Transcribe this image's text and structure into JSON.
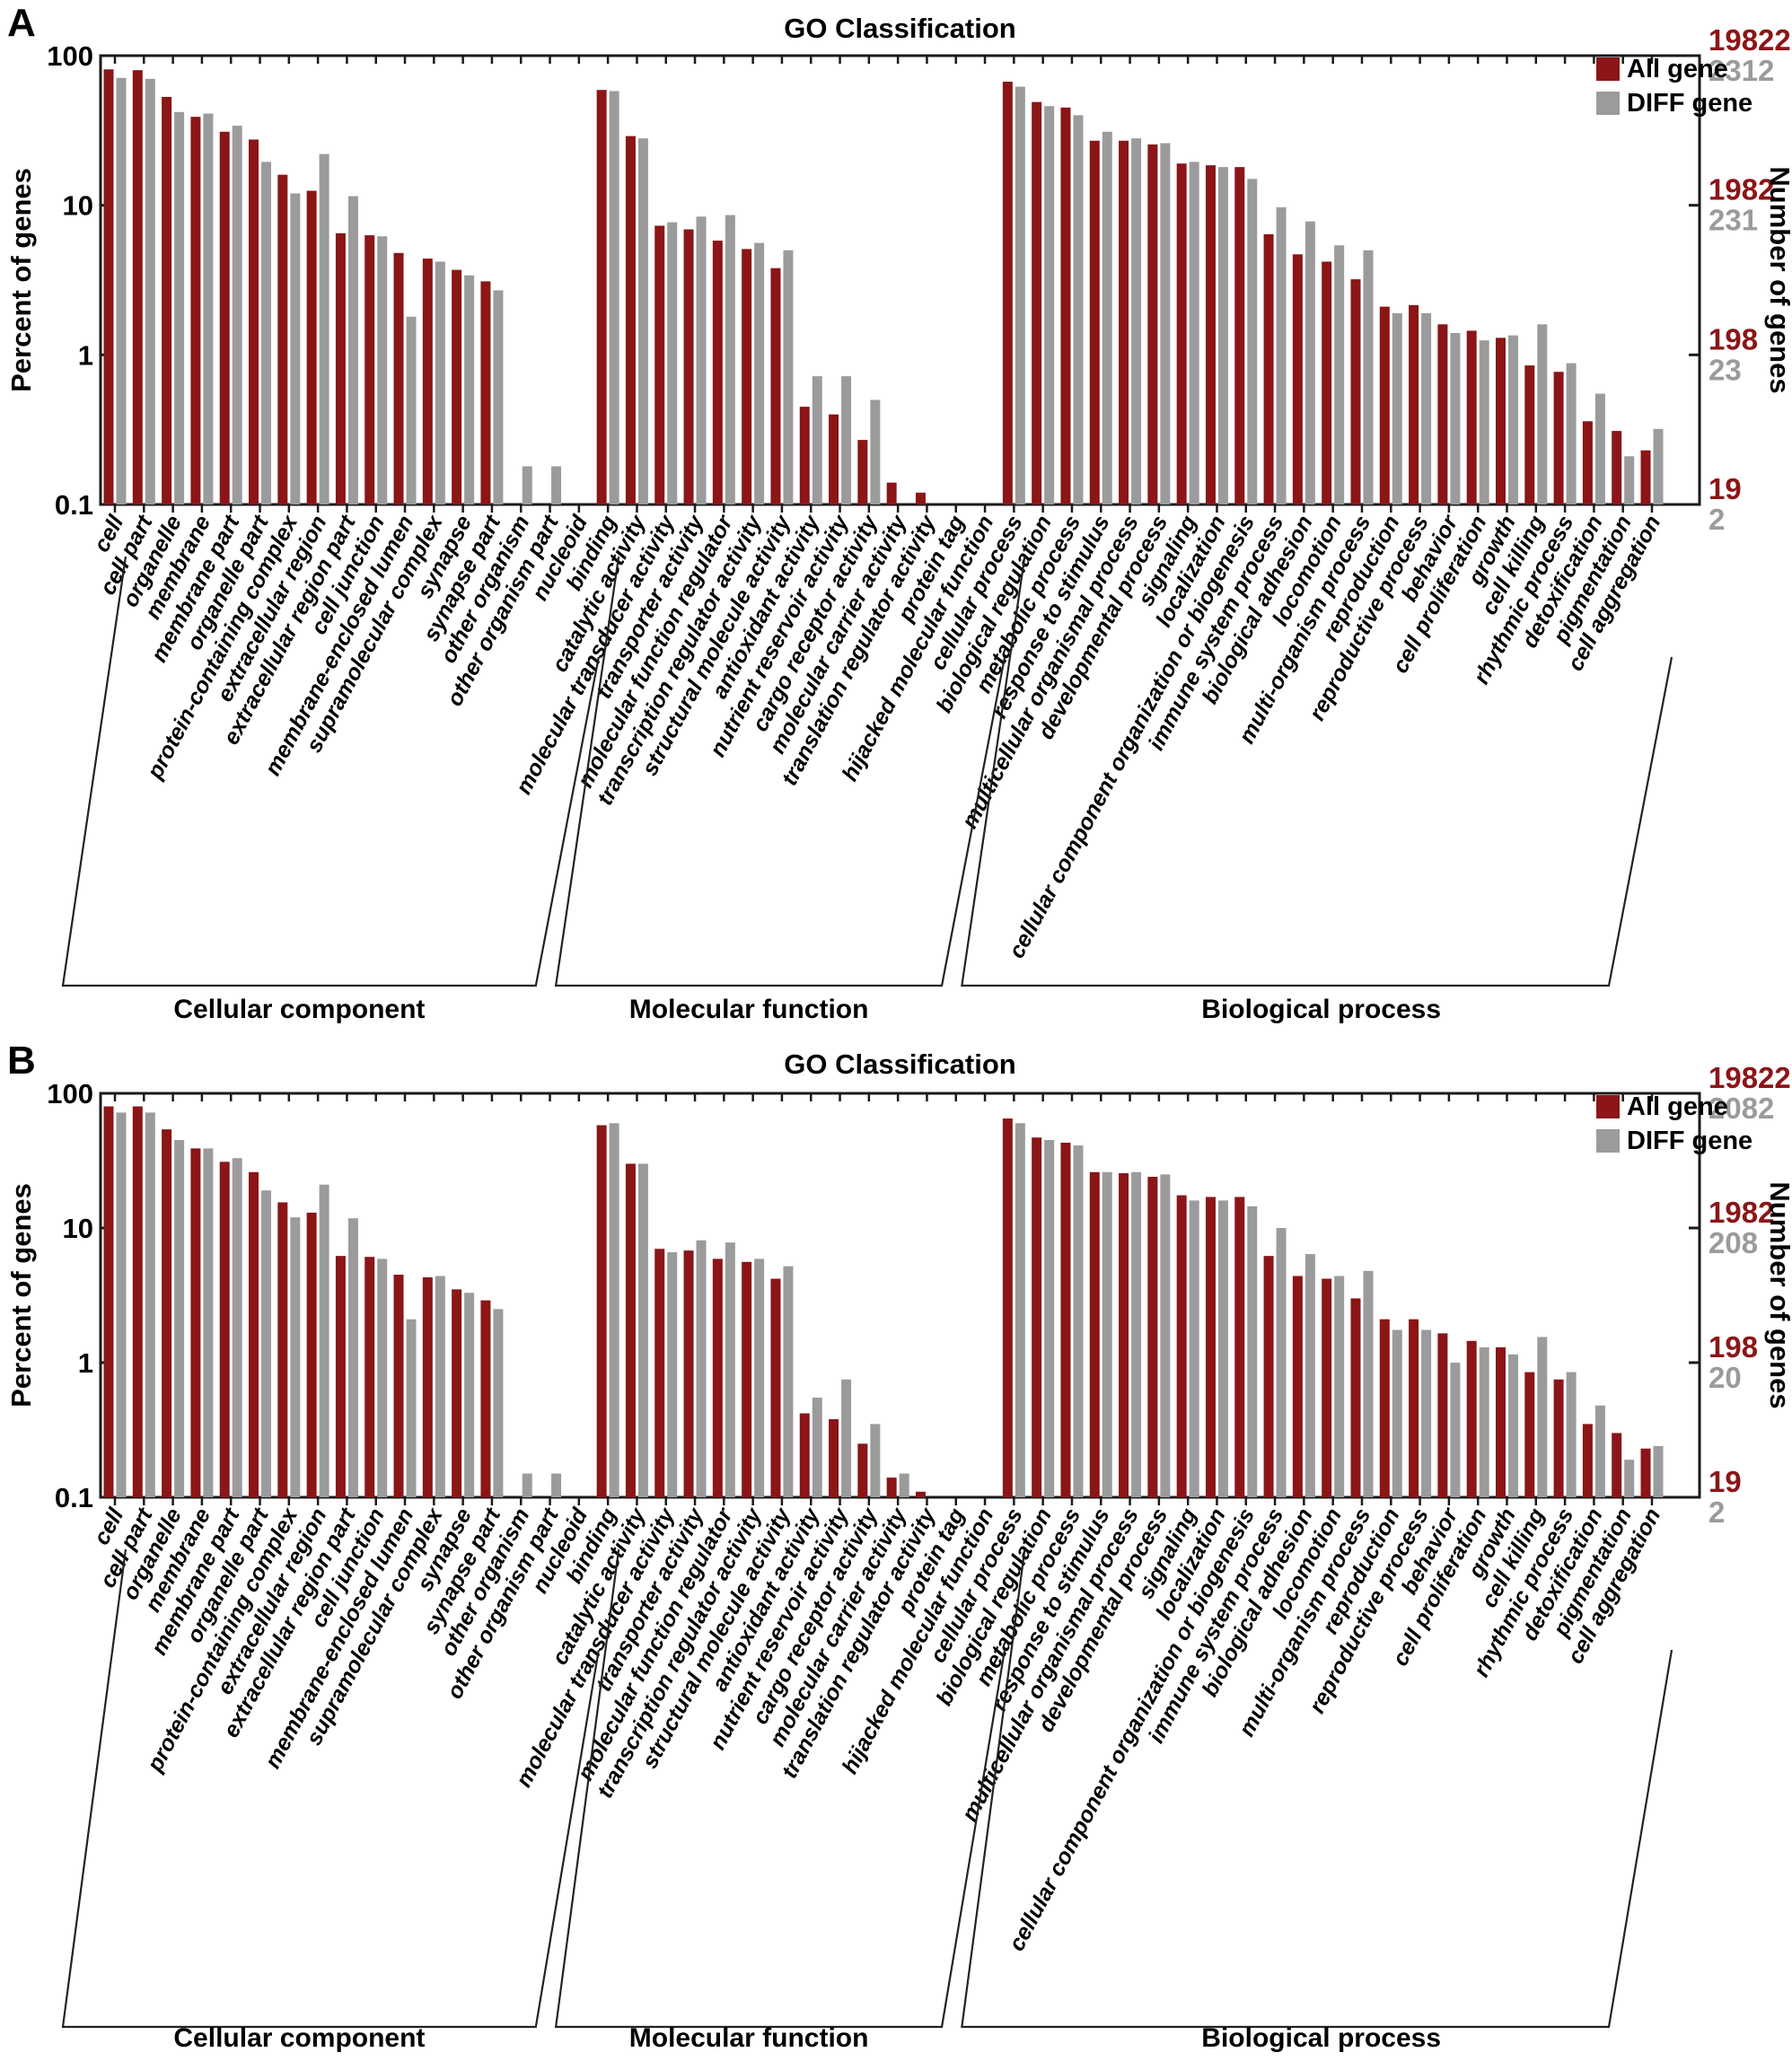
{
  "figure": {
    "title": "GO Classification",
    "ylabel_left": "Percent of genes",
    "ylabel_right": "Number of genes",
    "left_ticks": [
      "100",
      "10",
      "1",
      "0.1"
    ],
    "legend": [
      {
        "label": "All gene",
        "color": "#8b1517"
      },
      {
        "label": "DIFF gene",
        "color": "#9b9b9b"
      }
    ],
    "colors": {
      "all_gene": "#8b1517",
      "diff_gene": "#9b9b9b",
      "axis": "#1a1a1a",
      "text": "#000000"
    },
    "panels": [
      {
        "letter": "A",
        "right_axis_all": [
          "19822",
          "1982",
          "198",
          "19"
        ],
        "right_axis_diff": [
          "2312",
          "231",
          "23",
          "2"
        ]
      },
      {
        "letter": "B",
        "right_axis_all": [
          "19822",
          "1982",
          "198",
          "19"
        ],
        "right_axis_diff": [
          "2082",
          "208",
          "20",
          "2"
        ]
      }
    ],
    "group_captions": [
      "Cellular component",
      "Molecular function",
      "Biological process"
    ]
  },
  "chart_data": [
    {
      "type": "bar",
      "panel": "A",
      "title": "GO Classification",
      "ylabel": "Percent of genes",
      "y2label": "Number of genes",
      "yscale": "log",
      "ylim": [
        0.1,
        100
      ],
      "legend_position": "top-right-inside",
      "series_names": [
        "All gene",
        "DIFF gene"
      ],
      "groups": [
        {
          "name": "Cellular component",
          "categories": [
            "cell",
            "cell part",
            "organelle",
            "membrane",
            "membrane part",
            "organelle part",
            "protein-containing complex",
            "extracellular region",
            "extracellular region part",
            "cell junction",
            "membrane-enclosed lumen",
            "supramolecular complex",
            "synapse",
            "synapse part",
            "other organism",
            "other organism part",
            "nucleoid"
          ],
          "series": [
            {
              "name": "All gene",
              "values": [
                81,
                80,
                53,
                39,
                31,
                27.5,
                16,
                12.5,
                6.5,
                6.3,
                4.8,
                4.4,
                3.7,
                3.1,
                0,
                0,
                0
              ]
            },
            {
              "name": "DIFF gene",
              "values": [
                71,
                70,
                42,
                41,
                34,
                19.5,
                12,
                22,
                11.5,
                6.2,
                1.8,
                4.2,
                3.4,
                2.7,
                0.18,
                0.18,
                0
              ]
            }
          ]
        },
        {
          "name": "Molecular function",
          "categories": [
            "binding",
            "catalytic activity",
            "molecular transducer activity",
            "transporter activity",
            "molecular function regulator",
            "transcription regulator activity",
            "structural molecule activity",
            "antioxidant activity",
            "nutrient reservoir activity",
            "cargo receptor activity",
            "molecular carrier activity",
            "translation regulator activity",
            "protein tag",
            "hijacked molecular function"
          ],
          "series": [
            {
              "name": "All gene",
              "values": [
                59,
                29,
                7.3,
                6.9,
                5.8,
                5.1,
                3.8,
                0.45,
                0.4,
                0.27,
                0.14,
                0.12,
                0,
                0
              ]
            },
            {
              "name": "DIFF gene",
              "values": [
                58,
                28,
                7.7,
                8.4,
                8.6,
                5.6,
                5.0,
                0.72,
                0.72,
                0.5,
                0,
                0,
                0,
                0
              ]
            }
          ]
        },
        {
          "name": "Biological process",
          "categories": [
            "cellular process",
            "biological regulation",
            "metabolic process",
            "response to stimulus",
            "multicellular organismal process",
            "developmental process",
            "signaling",
            "localization",
            "cellular component organization or biogenesis",
            "immune system process",
            "biological adhesion",
            "locomotion",
            "multi-organism process",
            "reproduction",
            "reproductive process",
            "behavior",
            "cell proliferation",
            "growth",
            "cell killing",
            "rhythmic process",
            "detoxification",
            "pigmentation",
            "cell aggregation"
          ],
          "series": [
            {
              "name": "All gene",
              "values": [
                67,
                49,
                45,
                27,
                27,
                25.5,
                19,
                18.5,
                18,
                6.4,
                4.7,
                4.2,
                3.2,
                2.1,
                2.15,
                1.6,
                1.45,
                1.3,
                0.85,
                0.77,
                0.36,
                0.31,
                0.23
              ]
            },
            {
              "name": "DIFF gene",
              "values": [
                62,
                46,
                40,
                31,
                28,
                26,
                19.5,
                18,
                15,
                9.7,
                7.8,
                5.4,
                5.0,
                1.9,
                1.9,
                1.4,
                1.25,
                1.35,
                1.6,
                0.88,
                0.55,
                0.21,
                0.32
              ]
            }
          ]
        }
      ],
      "right_axis": {
        "all": [
          "19822",
          "1982",
          "198",
          "19"
        ],
        "diff": [
          "2312",
          "231",
          "23",
          "2"
        ]
      }
    },
    {
      "type": "bar",
      "panel": "B",
      "title": "GO Classification",
      "ylabel": "Percent of genes",
      "y2label": "Number of genes",
      "yscale": "log",
      "ylim": [
        0.1,
        100
      ],
      "legend_position": "top-right-inside",
      "series_names": [
        "All gene",
        "DIFF gene"
      ],
      "groups": [
        {
          "name": "Cellular component",
          "categories": [
            "cell",
            "cell part",
            "organelle",
            "membrane",
            "membrane part",
            "organelle part",
            "protein-containing complex",
            "extracellular region",
            "extracellular region part",
            "cell junction",
            "membrane-enclosed lumen",
            "supramolecular complex",
            "synapse",
            "synapse part",
            "other organism",
            "other organism part",
            "nucleoid"
          ],
          "series": [
            {
              "name": "All gene",
              "values": [
                80,
                80,
                54,
                39,
                31,
                26,
                15.5,
                13,
                6.2,
                6.1,
                4.5,
                4.3,
                3.5,
                2.9,
                0,
                0,
                0
              ]
            },
            {
              "name": "DIFF gene",
              "values": [
                72,
                72,
                45,
                39,
                33,
                19,
                12,
                21,
                11.8,
                5.9,
                2.1,
                4.4,
                3.3,
                2.5,
                0.15,
                0.15,
                0
              ]
            }
          ]
        },
        {
          "name": "Molecular function",
          "categories": [
            "binding",
            "catalytic activity",
            "molecular transducer activity",
            "transporter activity",
            "molecular function regulator",
            "transcription regulator activity",
            "structural molecule activity",
            "antioxidant activity",
            "nutrient reservoir activity",
            "cargo receptor activity",
            "molecular carrier activity",
            "translation regulator activity",
            "protein tag",
            "hijacked molecular function"
          ],
          "series": [
            {
              "name": "All gene",
              "values": [
                58,
                30,
                7.0,
                6.8,
                5.9,
                5.6,
                4.2,
                0.42,
                0.38,
                0.25,
                0.14,
                0.11,
                0,
                0
              ]
            },
            {
              "name": "DIFF gene",
              "values": [
                60,
                30,
                6.6,
                8.1,
                7.8,
                5.9,
                5.2,
                0.55,
                0.75,
                0.35,
                0.15,
                0,
                0,
                0
              ]
            }
          ]
        },
        {
          "name": "Biological process",
          "categories": [
            "cellular process",
            "biological regulation",
            "metabolic process",
            "response to stimulus",
            "multicellular organismal process",
            "developmental process",
            "signaling",
            "localization",
            "cellular component organization or biogenesis",
            "immune system process",
            "biological adhesion",
            "locomotion",
            "multi-organism process",
            "reproduction",
            "reproductive process",
            "behavior",
            "cell proliferation",
            "growth",
            "cell killing",
            "rhythmic process",
            "detoxification",
            "pigmentation",
            "cell aggregation"
          ],
          "series": [
            {
              "name": "All gene",
              "values": [
                65,
                47,
                43,
                26,
                25.5,
                24,
                17.5,
                17,
                17,
                6.2,
                4.4,
                4.2,
                3.0,
                2.1,
                2.1,
                1.65,
                1.45,
                1.3,
                0.85,
                0.75,
                0.35,
                0.3,
                0.23
              ]
            },
            {
              "name": "DIFF gene",
              "values": [
                60,
                45,
                41,
                26,
                26,
                25,
                16,
                16,
                14.5,
                10,
                6.4,
                4.4,
                4.8,
                1.75,
                1.75,
                1.0,
                1.3,
                1.15,
                1.55,
                0.85,
                0.48,
                0.19,
                0.24
              ]
            }
          ]
        }
      ],
      "right_axis": {
        "all": [
          "19822",
          "1982",
          "198",
          "19"
        ],
        "diff": [
          "2082",
          "208",
          "20",
          "2"
        ]
      }
    }
  ]
}
